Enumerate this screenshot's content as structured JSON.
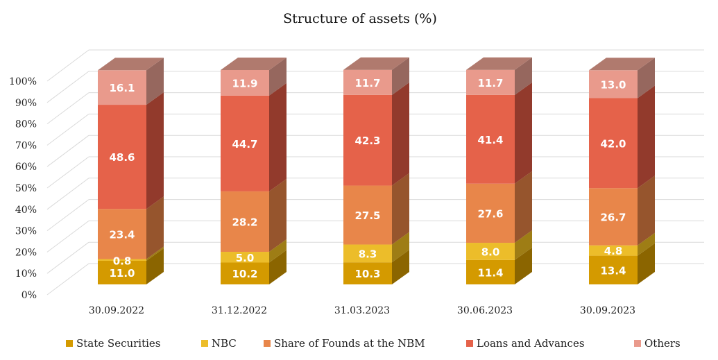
{
  "chart_data": {
    "type": "bar",
    "stacked": true,
    "style": "3d-stacked-column",
    "title": "Structure of assets (%)",
    "xlabel": "",
    "ylabel": "",
    "ylim": [
      0,
      100
    ],
    "yticks": [
      "0%",
      "10%",
      "20%",
      "30%",
      "40%",
      "50%",
      "60%",
      "70%",
      "80%",
      "90%",
      "100%"
    ],
    "grid": true,
    "legend_position": "bottom",
    "categories": [
      "30.09.2022",
      "31.12.2022",
      "31.03.2023",
      "30.06.2023",
      "30.09.2023"
    ],
    "series": [
      {
        "name": "State Securities",
        "color": "#D49A00",
        "side": "#8B6500",
        "top": "#B08000",
        "values": [
          11.0,
          10.2,
          10.3,
          11.4,
          13.4
        ],
        "labels": [
          "11.0",
          "10.2",
          "10.3",
          "11.4",
          "13.4"
        ]
      },
      {
        "name": "NBC",
        "color": "#ECBD2A",
        "side": "#9E7D15",
        "top": "#C49C20",
        "values": [
          0.8,
          5.0,
          8.3,
          8.0,
          4.8
        ],
        "labels": [
          "0.8",
          "5.0",
          "8.3",
          "8.0",
          "4.8"
        ]
      },
      {
        "name": "Share of Founds at the NBM",
        "color": "#E8864A",
        "side": "#96552D",
        "top": "#C07040",
        "values": [
          23.4,
          28.2,
          27.5,
          27.6,
          26.7
        ],
        "labels": [
          "23.4",
          "28.2",
          "27.5",
          "27.6",
          "26.7"
        ]
      },
      {
        "name": "Loans and Advances",
        "color": "#E5624A",
        "side": "#923A2C",
        "top": "#C0523E",
        "values": [
          48.6,
          44.7,
          42.3,
          41.4,
          42.0
        ],
        "labels": [
          "48.6",
          "44.7",
          "42.3",
          "41.4",
          "42.0"
        ]
      },
      {
        "name": "Others",
        "color": "#E99A8C",
        "side": "#96675E",
        "top": "#B07A6E",
        "values": [
          16.1,
          11.9,
          11.7,
          11.7,
          13.0
        ],
        "labels": [
          "16.1",
          "11.9",
          "11.7",
          "11.7",
          "13.0"
        ]
      }
    ]
  },
  "colors": {
    "grid": "#D9D9D9",
    "text": "#222222"
  }
}
